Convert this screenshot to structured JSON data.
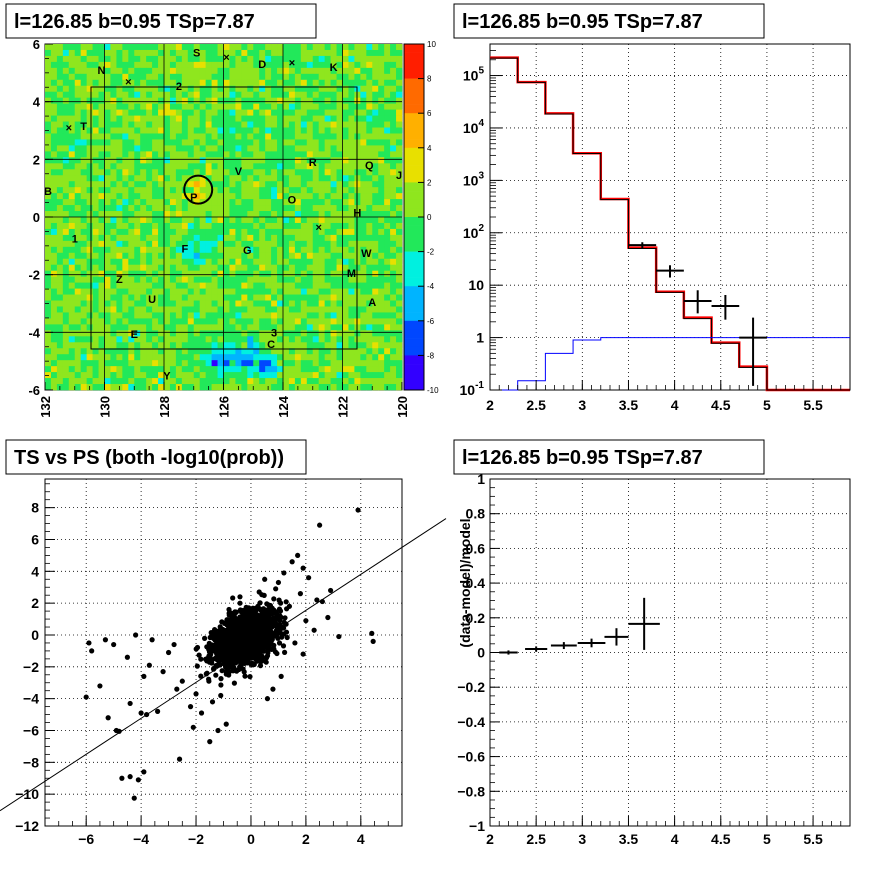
{
  "chart_data": [
    {
      "type": "heatmap",
      "title": "l=126.85 b=0.95 TSp=7.87",
      "xlim": [
        132,
        120
      ],
      "ylim": [
        -6,
        6
      ],
      "x_ticks": [
        "132",
        "130",
        "128",
        "126",
        "124",
        "122",
        "120"
      ],
      "y_ticks": [
        "6",
        "4",
        "2",
        "0",
        "-2",
        "-4",
        "-6"
      ],
      "z_ticks": [
        "10",
        "8",
        "6",
        "4",
        "2",
        "0",
        "-2",
        "-4",
        "-6",
        "-8",
        "-10"
      ],
      "zlim": [
        -10,
        10
      ],
      "grid": true,
      "colors": {
        "background": "#33e633",
        "marker": "#000000"
      },
      "source_labels": [
        {
          "text": "S",
          "l": 126.9,
          "b": 5.7
        },
        {
          "text": "×",
          "l": 125.9,
          "b": 5.55
        },
        {
          "text": "D",
          "l": 124.7,
          "b": 5.3
        },
        {
          "text": "×",
          "l": 123.7,
          "b": 5.35
        },
        {
          "text": "K",
          "l": 122.3,
          "b": 5.2
        },
        {
          "text": "N",
          "l": 130.1,
          "b": 5.1
        },
        {
          "text": "×",
          "l": 129.2,
          "b": 4.7
        },
        {
          "text": "2",
          "l": 127.5,
          "b": 4.55
        },
        {
          "text": "×",
          "l": 131.2,
          "b": 3.1
        },
        {
          "text": "T",
          "l": 130.7,
          "b": 3.15
        },
        {
          "text": "R",
          "l": 123.0,
          "b": 1.9
        },
        {
          "text": "Q",
          "l": 121.1,
          "b": 1.8
        },
        {
          "text": "J",
          "l": 120.1,
          "b": 1.45
        },
        {
          "text": "V",
          "l": 125.5,
          "b": 1.6
        },
        {
          "text": "B",
          "l": 131.9,
          "b": 0.9
        },
        {
          "text": "P",
          "l": 127.0,
          "b": 0.7
        },
        {
          "text": "O",
          "l": 123.7,
          "b": 0.6
        },
        {
          "text": "H",
          "l": 121.5,
          "b": 0.15
        },
        {
          "text": "×",
          "l": 122.8,
          "b": -0.35
        },
        {
          "text": "1",
          "l": 131.0,
          "b": -0.75
        },
        {
          "text": "F",
          "l": 127.3,
          "b": -1.1
        },
        {
          "text": "G",
          "l": 125.2,
          "b": -1.15
        },
        {
          "text": "W",
          "l": 121.2,
          "b": -1.25
        },
        {
          "text": "M",
          "l": 121.7,
          "b": -1.95
        },
        {
          "text": "Z",
          "l": 129.5,
          "b": -2.15
        },
        {
          "text": "U",
          "l": 128.4,
          "b": -2.85
        },
        {
          "text": "A",
          "l": 121.0,
          "b": -2.95
        },
        {
          "text": "E",
          "l": 129.0,
          "b": -4.05
        },
        {
          "text": "3",
          "l": 124.3,
          "b": -4.0
        },
        {
          "text": "C",
          "l": 124.4,
          "b": -4.4
        },
        {
          "text": "Y",
          "l": 127.9,
          "b": -5.5
        }
      ],
      "highlight_circle": {
        "l": 126.85,
        "b": 0.95
      }
    },
    {
      "type": "line",
      "title": "l=126.85 b=0.95 TSp=7.87",
      "xlim": [
        2,
        5.9
      ],
      "ylim": [
        0.1,
        400000
      ],
      "yscale": "log",
      "grid": true,
      "x_ticks": [
        "2",
        "2.5",
        "3",
        "3.5",
        "4",
        "4.5",
        "5",
        "5.5"
      ],
      "y_ticks": [
        "10^5",
        "10^4",
        "10^3",
        "10^2",
        "10",
        "1",
        "10^-1"
      ],
      "y_tick_values": [
        100000,
        10000,
        1000,
        100,
        10,
        1,
        0.1
      ],
      "bin_edges": [
        2.0,
        2.3,
        2.6,
        2.9,
        3.2,
        3.5,
        3.8,
        4.1,
        4.4,
        4.7,
        5.0,
        5.3,
        5.6,
        5.9
      ],
      "series": [
        {
          "style": "hist-red",
          "color": "#ff0000",
          "values": [
            220000,
            75000,
            19000,
            3300,
            440,
            52,
            7.5,
            2.4,
            0.8,
            0.28,
            0.1,
            0.1,
            0.1
          ]
        },
        {
          "style": "hist-black",
          "color": "#000000",
          "values": [
            215000,
            74000,
            18500,
            3250,
            430,
            50,
            7.3,
            2.3,
            0.78,
            0.27,
            0.09,
            0.09,
            0.09
          ]
        },
        {
          "style": "hist-blue",
          "color": "#0000ff",
          "values": [
            0.09,
            0.15,
            0.5,
            0.9,
            1.0,
            1.0,
            1.0,
            1.0,
            1.0,
            1.0,
            1.0,
            1.0,
            1.0
          ]
        },
        {
          "style": "points",
          "color": "#000000",
          "points": [
            {
              "x": 3.65,
              "y": 58,
              "xerr": 0.15,
              "ylo": 50,
              "yhi": 66
            },
            {
              "x": 3.95,
              "y": 19,
              "xerr": 0.15,
              "ylo": 14,
              "yhi": 24
            },
            {
              "x": 4.25,
              "y": 5,
              "xerr": 0.15,
              "ylo": 2.9,
              "yhi": 8
            },
            {
              "x": 4.55,
              "y": 4,
              "xerr": 0.15,
              "ylo": 2.2,
              "yhi": 6.5
            },
            {
              "x": 4.85,
              "y": 1,
              "xerr": 0.15,
              "ylo": 0.12,
              "yhi": 2.4
            }
          ]
        }
      ]
    },
    {
      "type": "scatter",
      "title": "TS vs PS (both -log10(prob))",
      "xlim": [
        -7.5,
        5.5
      ],
      "ylim": [
        -12,
        9.8
      ],
      "grid": true,
      "x_ticks": [
        "−6",
        "−4",
        "−2",
        "0",
        "2",
        "4"
      ],
      "x_tick_values": [
        -6,
        -4,
        -2,
        0,
        2,
        4
      ],
      "y_ticks": [
        "8",
        "6",
        "4",
        "2",
        "0",
        "−2",
        "−4",
        "−6",
        "−8",
        "−10",
        "−12"
      ],
      "y_tick_values": [
        8,
        6,
        4,
        2,
        0,
        -2,
        -4,
        -6,
        -8,
        -10,
        -12
      ],
      "fit_line": {
        "x1": -7.5,
        "y1": -9.19,
        "x2": 7.0,
        "y2": 7.2
      },
      "dense_cloud": {
        "x_mean": -0.2,
        "y_mean": -0.2,
        "x_sd": 0.55,
        "y_sd": 0.75,
        "count": 1800
      },
      "points": [
        [
          3.9,
          7.85
        ],
        [
          2.5,
          6.9
        ],
        [
          4.4,
          0.1
        ],
        [
          4.45,
          -0.4
        ],
        [
          3.2,
          -0.1
        ],
        [
          2.9,
          2.8
        ],
        [
          2.6,
          2.1
        ],
        [
          1.7,
          5.0
        ],
        [
          1.9,
          4.2
        ],
        [
          1.5,
          4.6
        ],
        [
          2.1,
          3.6
        ],
        [
          1.2,
          3.9
        ],
        [
          2.8,
          1.1
        ],
        [
          2.3,
          0.3
        ],
        [
          -5.9,
          -0.5
        ],
        [
          -5.8,
          -1.0
        ],
        [
          -5.3,
          -0.3
        ],
        [
          -5.0,
          -0.6
        ],
        [
          -4.2,
          0.0
        ],
        [
          -4.5,
          -1.4
        ],
        [
          -3.6,
          -0.3
        ],
        [
          -3.0,
          -1.1
        ],
        [
          -2.8,
          -0.6
        ],
        [
          -6.0,
          -3.9
        ],
        [
          -5.5,
          -3.2
        ],
        [
          -5.2,
          -5.2
        ],
        [
          -4.9,
          -6.0
        ],
        [
          -4.8,
          -6.05
        ],
        [
          -4.4,
          -4.3
        ],
        [
          -4.0,
          -4.9
        ],
        [
          -3.8,
          -5.0
        ],
        [
          -3.4,
          -4.8
        ],
        [
          -4.7,
          -9.0
        ],
        [
          -4.4,
          -8.9
        ],
        [
          -4.1,
          -9.1
        ],
        [
          -3.9,
          -8.6
        ],
        [
          -4.25,
          -10.25
        ],
        [
          -2.6,
          -7.8
        ],
        [
          -2.2,
          -4.5
        ],
        [
          -2.1,
          -5.8
        ],
        [
          -1.5,
          -6.7
        ],
        [
          -1.8,
          -4.9
        ],
        [
          -1.2,
          -6.0
        ],
        [
          -3.2,
          -2.3
        ],
        [
          -2.5,
          -2.9
        ],
        [
          -2.0,
          -3.7
        ],
        [
          -1.6,
          -2.4
        ],
        [
          -2.7,
          -3.4
        ],
        [
          -3.7,
          -1.9
        ],
        [
          -3.9,
          -2.6
        ],
        [
          -1.4,
          -4.2
        ],
        [
          -0.9,
          -5.6
        ],
        [
          -1.1,
          -3.8
        ],
        [
          0.8,
          -3.4
        ],
        [
          0.6,
          -4.0
        ],
        [
          1.1,
          -2.6
        ],
        [
          1.9,
          -1.2
        ],
        [
          1.6,
          -0.5
        ],
        [
          2.0,
          0.9
        ],
        [
          1.4,
          1.8
        ],
        [
          0.9,
          2.9
        ],
        [
          0.5,
          3.5
        ],
        [
          -0.4,
          2.4
        ],
        [
          -0.8,
          1.6
        ],
        [
          0.3,
          2.7
        ],
        [
          1.0,
          3.3
        ],
        [
          2.4,
          2.2
        ],
        [
          1.8,
          2.6
        ]
      ]
    },
    {
      "type": "scatter",
      "title": "l=126.85 b=0.95 TSp=7.87",
      "ylabel": "(data-model)/model",
      "xlim": [
        2,
        5.9
      ],
      "ylim": [
        -1,
        1
      ],
      "grid": true,
      "x_ticks": [
        "2",
        "2.5",
        "3",
        "3.5",
        "4",
        "4.5",
        "5",
        "5.5"
      ],
      "x_tick_values": [
        2,
        2.5,
        3,
        3.5,
        4,
        4.5,
        5,
        5.5
      ],
      "y_ticks": [
        "1",
        "0.8",
        "0.6",
        "0.4",
        "0.2",
        "0",
        "−0.2",
        "−0.4",
        "−0.6",
        "−0.8",
        "−1"
      ],
      "y_tick_values": [
        1,
        0.8,
        0.6,
        0.4,
        0.2,
        0,
        -0.2,
        -0.4,
        -0.6,
        -0.8,
        -1
      ],
      "points": [
        {
          "x": 2.2,
          "y": 0.0,
          "xerr": 0.1,
          "yerr": 0.012
        },
        {
          "x": 2.5,
          "y": 0.02,
          "xerr": 0.12,
          "yerr": 0.015
        },
        {
          "x": 2.8,
          "y": 0.04,
          "xerr": 0.14,
          "yerr": 0.02
        },
        {
          "x": 3.1,
          "y": 0.055,
          "xerr": 0.15,
          "yerr": 0.025
        },
        {
          "x": 3.37,
          "y": 0.09,
          "xerr": 0.13,
          "yerr": 0.05
        },
        {
          "x": 3.67,
          "y": 0.165,
          "xerr": 0.17,
          "yerr": 0.15
        }
      ]
    }
  ]
}
